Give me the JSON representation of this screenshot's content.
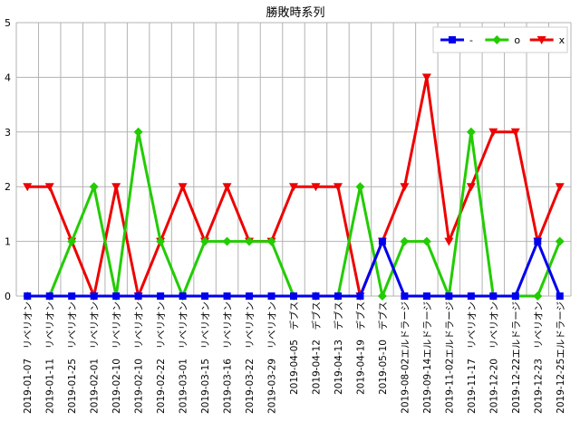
{
  "chart_data": {
    "type": "line",
    "title": "勝敗時系列",
    "xlabel": "",
    "ylabel": "",
    "ylim": [
      0,
      5
    ],
    "yticks": [
      0,
      1,
      2,
      3,
      4,
      5
    ],
    "grid": true,
    "legend_position": "top-right",
    "categories": [
      "2019-01-07　リベリオン",
      "2019-01-11　リベリオン",
      "2019-01-25　リベリオン",
      "2019-02-01　リベリオン",
      "2019-02-10　リベリオン",
      "2019-02-10　リベリオン",
      "2019-02-22　リベリオン",
      "2019-03-01　リベリオン",
      "2019-03-15　リベリオン",
      "2019-03-16　リベリオン",
      "2019-03-22　リベリオン",
      "2019-03-29　リベリオン",
      "2019-04-05　デブス",
      "2019-04-12　デブス",
      "2019-04-13　デブス",
      "2019-04-19　デブス",
      "2019-05-10　デブス",
      "2019-08-02エルドラージ",
      "2019-09-14エルドラージ",
      "2019-11-02エルドラージ",
      "2019-11-17　リベリオン",
      "2019-12-20　リベリオン",
      "2019-12-22エルドラージ",
      "2019-12-23　リベリオン",
      "2019-12-25エルドラージ"
    ],
    "series": [
      {
        "name": "-",
        "color": "#0000ee",
        "marker": "square",
        "values": [
          0,
          0,
          0,
          0,
          0,
          0,
          0,
          0,
          0,
          0,
          0,
          0,
          0,
          0,
          0,
          0,
          1,
          0,
          0,
          0,
          0,
          0,
          0,
          1,
          0
        ]
      },
      {
        "name": "o",
        "color": "#22cc00",
        "marker": "diamond",
        "values": [
          0,
          0,
          1,
          2,
          0,
          3,
          1,
          0,
          1,
          1,
          1,
          1,
          0,
          0,
          0,
          2,
          0,
          1,
          1,
          0,
          3,
          0,
          0,
          0,
          1
        ]
      },
      {
        "name": "x",
        "color": "#ee0000",
        "marker": "triangle-down",
        "values": [
          2,
          2,
          1,
          0,
          2,
          0,
          1,
          2,
          1,
          2,
          1,
          1,
          2,
          2,
          2,
          0,
          1,
          2,
          4,
          1,
          2,
          3,
          3,
          1,
          2
        ]
      }
    ]
  }
}
